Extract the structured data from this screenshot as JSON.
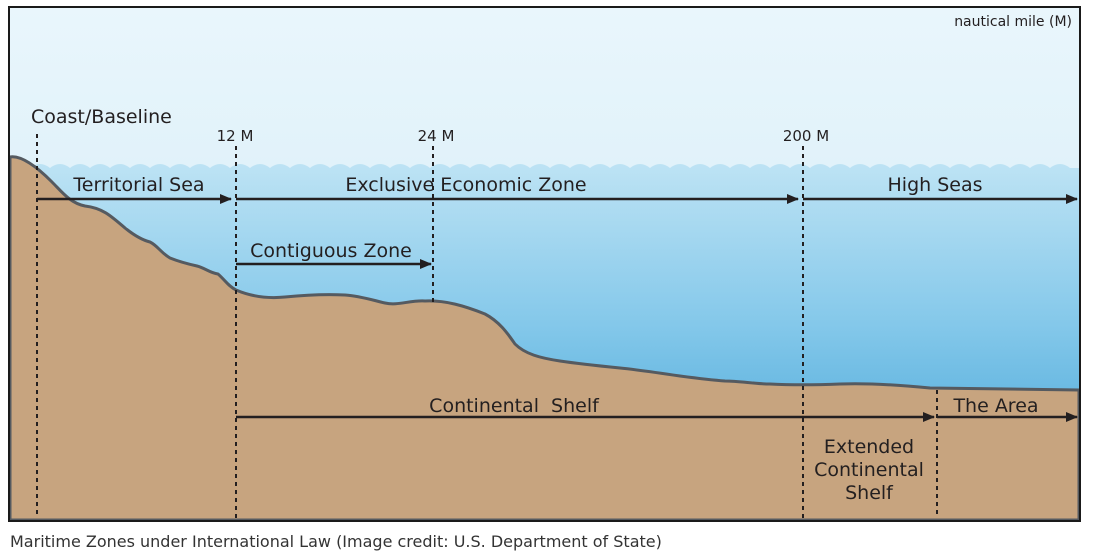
{
  "diagram": {
    "unit_label": "nautical mile (M)",
    "baseline_label": "Coast/Baseline",
    "markers": [
      "12 M",
      "24 M",
      "200 M"
    ],
    "zones": {
      "territorial_sea": "Territorial Sea",
      "eez": "Exclusive Economic Zone",
      "high_seas": "High Seas",
      "contiguous_zone": "Contiguous Zone",
      "continental_shelf": "Continental  Shelf",
      "the_area": "The Area",
      "extended_shelf": [
        "Extended",
        "Continental",
        "Shelf"
      ]
    }
  },
  "caption": "Maritime Zones under International Law (Image credit: U.S. Department of State)",
  "colors": {
    "sky_top": "#eaf6fc",
    "sky_bottom": "#cde9f5",
    "sea_top": "#b8e1f3",
    "sea_bottom": "#3fa6d8",
    "seabed": "#c8a47e",
    "arrow": "#231f20"
  }
}
